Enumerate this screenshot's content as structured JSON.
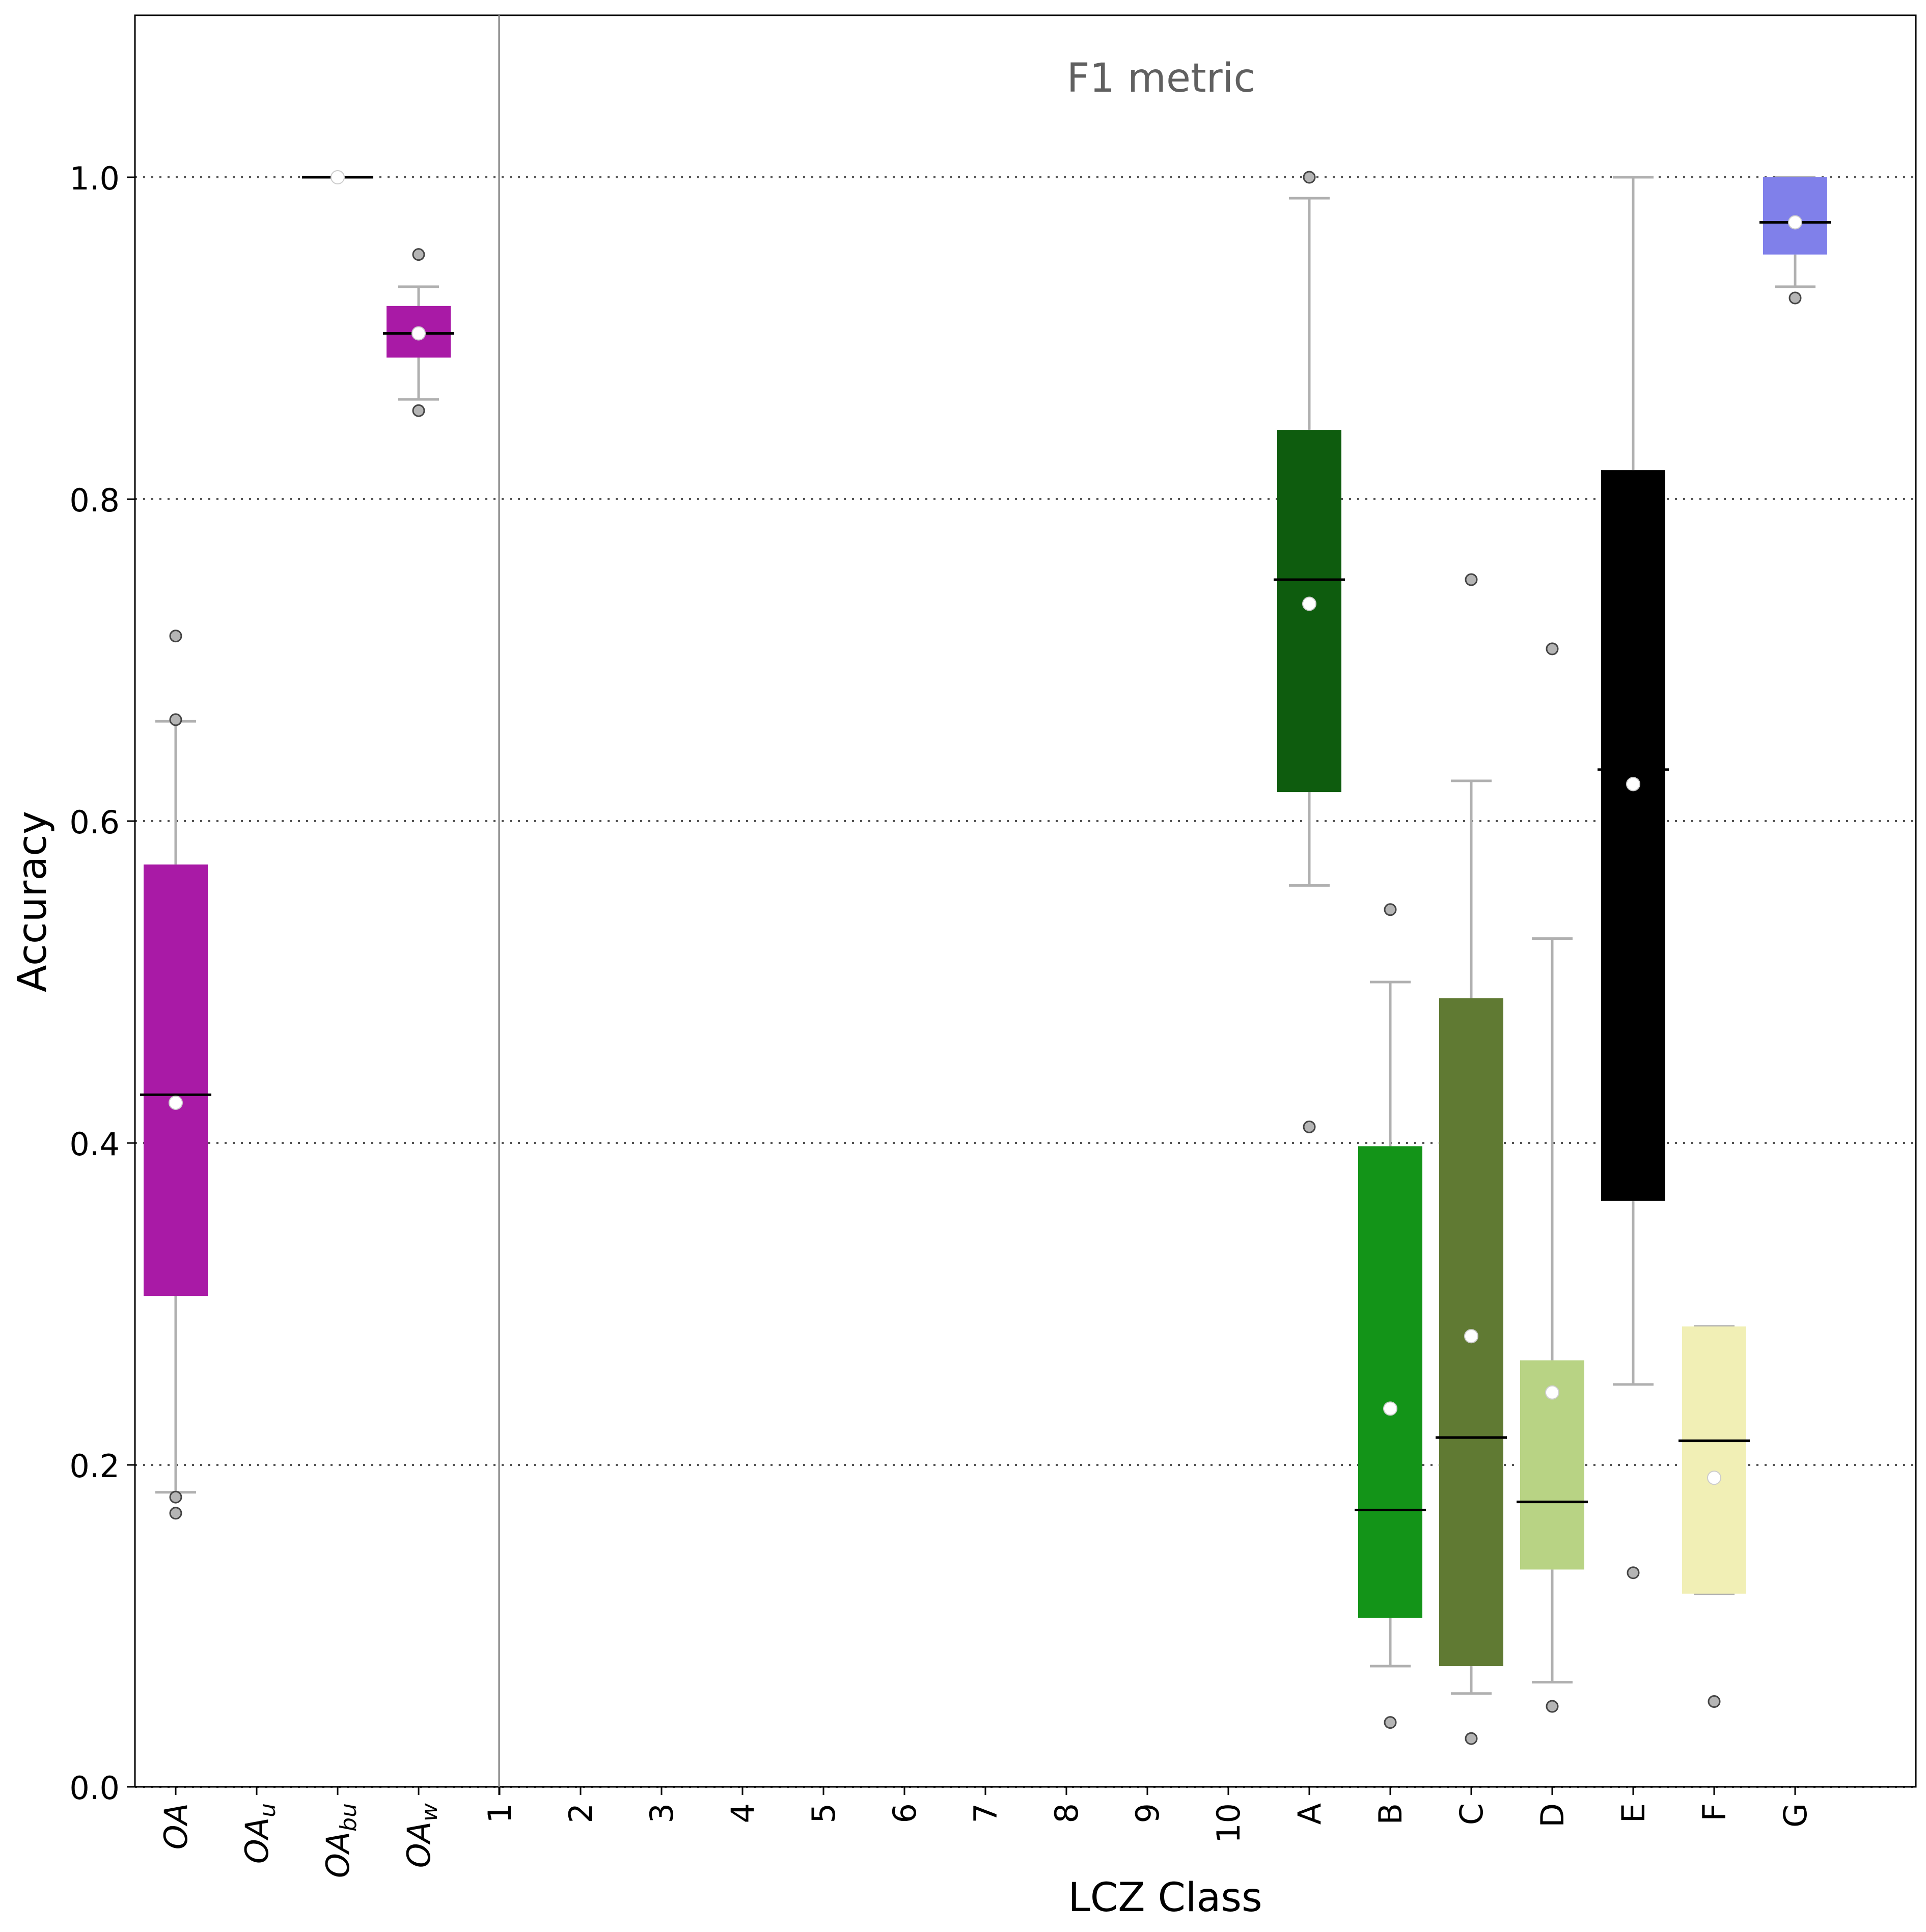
{
  "chart_data": {
    "type": "box",
    "title": "F1 metric",
    "xlabel": "LCZ Class",
    "ylabel": "Accuracy",
    "ylim": [
      0,
      1.1
    ],
    "yticks": [
      "0.0",
      "0.2",
      "0.4",
      "0.6",
      "0.8",
      "1.0"
    ],
    "grid": "horizontal dotted at 0.2 steps",
    "categories": [
      {
        "label": "OA",
        "sub": "",
        "italic": true
      },
      {
        "label": "OA",
        "sub": "u",
        "italic": true
      },
      {
        "label": "OA",
        "sub": "bu",
        "italic": true
      },
      {
        "label": "OA",
        "sub": "w",
        "italic": true
      },
      {
        "label": "1"
      },
      {
        "label": "2"
      },
      {
        "label": "3"
      },
      {
        "label": "4"
      },
      {
        "label": "5"
      },
      {
        "label": "6"
      },
      {
        "label": "7"
      },
      {
        "label": "8"
      },
      {
        "label": "9"
      },
      {
        "label": "10"
      },
      {
        "label": "A"
      },
      {
        "label": "B"
      },
      {
        "label": "C"
      },
      {
        "label": "D"
      },
      {
        "label": "E"
      },
      {
        "label": "F"
      },
      {
        "label": "G"
      }
    ],
    "boxes": [
      {
        "category": "OA",
        "color": "#a91aa6",
        "q1": 0.305,
        "median": 0.43,
        "q3": 0.573,
        "whisker_low": 0.183,
        "whisker_high": 0.662,
        "mean": 0.425,
        "outliers": [
          0.715,
          0.663,
          0.18,
          0.17
        ]
      },
      {
        "category": "OA_bu",
        "color": "#a91aa6",
        "q1": 1.0,
        "median": 1.0,
        "q3": 1.0,
        "whisker_low": 1.0,
        "whisker_high": 1.0,
        "mean": 1.0,
        "outliers": []
      },
      {
        "category": "OA_w",
        "color": "#a91aa6",
        "q1": 0.888,
        "median": 0.903,
        "q3": 0.92,
        "whisker_low": 0.862,
        "whisker_high": 0.932,
        "mean": 0.903,
        "outliers": [
          0.952,
          0.855
        ]
      },
      {
        "category": "A",
        "color": "#0e5c0e",
        "q1": 0.618,
        "median": 0.75,
        "q3": 0.843,
        "whisker_low": 0.56,
        "whisker_high": 0.987,
        "mean": 0.735,
        "outliers": [
          1.0,
          0.41
        ]
      },
      {
        "category": "B",
        "color": "#139418",
        "q1": 0.105,
        "median": 0.172,
        "q3": 0.398,
        "whisker_low": 0.075,
        "whisker_high": 0.5,
        "mean": 0.235,
        "outliers": [
          0.545,
          0.04
        ]
      },
      {
        "category": "C",
        "color": "#607a33",
        "q1": 0.075,
        "median": 0.217,
        "q3": 0.49,
        "whisker_low": 0.058,
        "whisker_high": 0.625,
        "mean": 0.28,
        "outliers": [
          0.75,
          0.03
        ]
      },
      {
        "category": "D",
        "color": "#b8d384",
        "q1": 0.135,
        "median": 0.177,
        "q3": 0.265,
        "whisker_low": 0.065,
        "whisker_high": 0.527,
        "mean": 0.245,
        "outliers": [
          0.707,
          0.05
        ]
      },
      {
        "category": "E",
        "color": "#000000",
        "q1": 0.364,
        "median": 0.632,
        "q3": 0.818,
        "whisker_low": 0.25,
        "whisker_high": 1.0,
        "mean": 0.623,
        "outliers": [
          0.133
        ]
      },
      {
        "category": "F",
        "color": "#f1efb5",
        "q1": 0.12,
        "median": 0.215,
        "q3": 0.286,
        "whisker_low": 0.12,
        "whisker_high": 0.286,
        "mean": 0.192,
        "outliers": [
          0.053
        ]
      },
      {
        "category": "G",
        "color": "#8080ea",
        "q1": 0.952,
        "median": 0.972,
        "q3": 1.0,
        "whisker_low": 0.932,
        "whisker_high": 1.0,
        "mean": 0.972,
        "outliers": [
          0.925
        ]
      }
    ]
  }
}
